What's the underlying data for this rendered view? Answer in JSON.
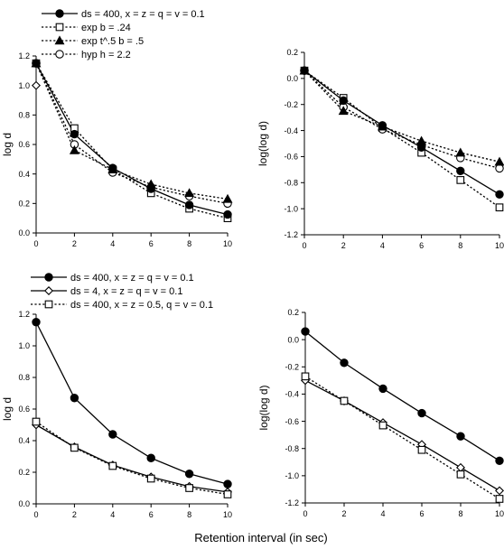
{
  "figure": {
    "xlabel": "Retention interval (in sec)"
  },
  "chart_data": [
    {
      "type": "line",
      "position": "top-left",
      "ylabel": "log d",
      "x": [
        0,
        2,
        4,
        6,
        8,
        10
      ],
      "xlim": [
        0,
        10
      ],
      "ylim": [
        0,
        1.2
      ],
      "xticks": [
        "0",
        "2",
        "4",
        "6",
        "8",
        "10"
      ],
      "yticks": [
        "0.0",
        "0.2",
        "0.4",
        "0.6",
        "0.8",
        "1.0",
        "1.2"
      ],
      "grid": false,
      "legend_placement": "top",
      "series": [
        {
          "name": "ds = 400, x = z = q = v = 0.1",
          "marker": "filled-circle",
          "line": "solid",
          "values": [
            1.15,
            0.67,
            0.44,
            0.3,
            0.19,
            0.125
          ]
        },
        {
          "name": "exp b = .24",
          "marker": "open-square",
          "line": "dotted",
          "values": [
            1.15,
            0.71,
            0.43,
            0.27,
            0.165,
            0.1
          ]
        },
        {
          "name": "exp t^.5 b = .5",
          "marker": "filled-triangle",
          "line": "dotted",
          "values": [
            1.15,
            0.56,
            0.43,
            0.33,
            0.27,
            0.23
          ]
        },
        {
          "name": "hyp h = 2.2",
          "marker": "open-circle",
          "line": "dotted",
          "values": [
            1.15,
            0.6,
            0.41,
            0.31,
            0.25,
            0.2
          ]
        },
        {
          "name": "",
          "marker": "open-diamond",
          "line": "none",
          "values": [
            1.0,
            null,
            null,
            null,
            null,
            null
          ]
        }
      ]
    },
    {
      "type": "line",
      "position": "top-right",
      "ylabel": "log(log d)",
      "x": [
        0,
        2,
        4,
        6,
        8,
        10
      ],
      "xlim": [
        0,
        10
      ],
      "ylim": [
        -1.2,
        0.2
      ],
      "xticks": [
        "0",
        "2",
        "4",
        "6",
        "8",
        "10"
      ],
      "yticks": [
        "0.2",
        "0.0",
        "-0.2",
        "-0.4",
        "-0.6",
        "-0.8",
        "-1.0",
        "-1.2"
      ],
      "grid": false,
      "series": [
        {
          "name": "ds = 400, x = z = q = v = 0.1",
          "marker": "filled-circle",
          "line": "solid",
          "values": [
            0.06,
            -0.17,
            -0.36,
            -0.53,
            -0.71,
            -0.89
          ]
        },
        {
          "name": "exp b = .24",
          "marker": "open-square",
          "line": "dotted",
          "values": [
            0.06,
            -0.15,
            -0.38,
            -0.57,
            -0.78,
            -0.99
          ]
        },
        {
          "name": "exp t^.5 b = .5",
          "marker": "filled-triangle",
          "line": "dotted",
          "values": [
            0.06,
            -0.25,
            -0.37,
            -0.48,
            -0.57,
            -0.64
          ]
        },
        {
          "name": "hyp h = 2.2",
          "marker": "open-circle",
          "line": "dotted",
          "values": [
            0.06,
            -0.22,
            -0.39,
            -0.51,
            -0.61,
            -0.69
          ]
        }
      ]
    },
    {
      "type": "line",
      "position": "bottom-left",
      "ylabel": "log d",
      "x": [
        0,
        2,
        4,
        6,
        8,
        10
      ],
      "xlim": [
        0,
        10
      ],
      "ylim": [
        0,
        1.2
      ],
      "xticks": [
        "0",
        "2",
        "4",
        "6",
        "8",
        "10"
      ],
      "yticks": [
        "0.0",
        "0.2",
        "0.4",
        "0.6",
        "0.8",
        "1.0",
        "1.2"
      ],
      "grid": false,
      "legend_placement": "top",
      "series": [
        {
          "name": "ds = 400, x = z = q = v = 0.1",
          "marker": "filled-circle",
          "line": "solid",
          "values": [
            1.15,
            0.67,
            0.44,
            0.29,
            0.19,
            0.125
          ]
        },
        {
          "name": "ds = 4, x = z = q = v = 0.1",
          "marker": "open-diamond",
          "line": "solid",
          "values": [
            0.5,
            0.36,
            0.245,
            0.17,
            0.11,
            0.075
          ]
        },
        {
          "name": "ds = 400, x = z = 0.5, q = v = 0.1",
          "marker": "open-square",
          "line": "dotted",
          "values": [
            0.52,
            0.355,
            0.24,
            0.16,
            0.1,
            0.06
          ]
        }
      ]
    },
    {
      "type": "line",
      "position": "bottom-right",
      "ylabel": "log(log d)",
      "x": [
        0,
        2,
        4,
        6,
        8,
        10
      ],
      "xlim": [
        0,
        10
      ],
      "ylim": [
        -1.2,
        0.2
      ],
      "xticks": [
        "0",
        "2",
        "4",
        "6",
        "8",
        "10"
      ],
      "yticks": [
        "0.2",
        "0.0",
        "-0.2",
        "-0.4",
        "-0.6",
        "-0.8",
        "-1.0",
        "-1.2"
      ],
      "grid": false,
      "series": [
        {
          "name": "ds = 400, x = z = q = v = 0.1",
          "marker": "filled-circle",
          "line": "solid",
          "values": [
            0.06,
            -0.17,
            -0.36,
            -0.54,
            -0.71,
            -0.89
          ]
        },
        {
          "name": "ds = 4, x = z = q = v = 0.1",
          "marker": "open-diamond",
          "line": "solid",
          "values": [
            -0.3,
            -0.45,
            -0.61,
            -0.77,
            -0.94,
            -1.11
          ]
        },
        {
          "name": "ds = 400, x = z = 0.5, q = v = 0.1",
          "marker": "open-square",
          "line": "dotted",
          "values": [
            -0.27,
            -0.45,
            -0.63,
            -0.81,
            -0.99,
            -1.17
          ]
        }
      ]
    }
  ]
}
